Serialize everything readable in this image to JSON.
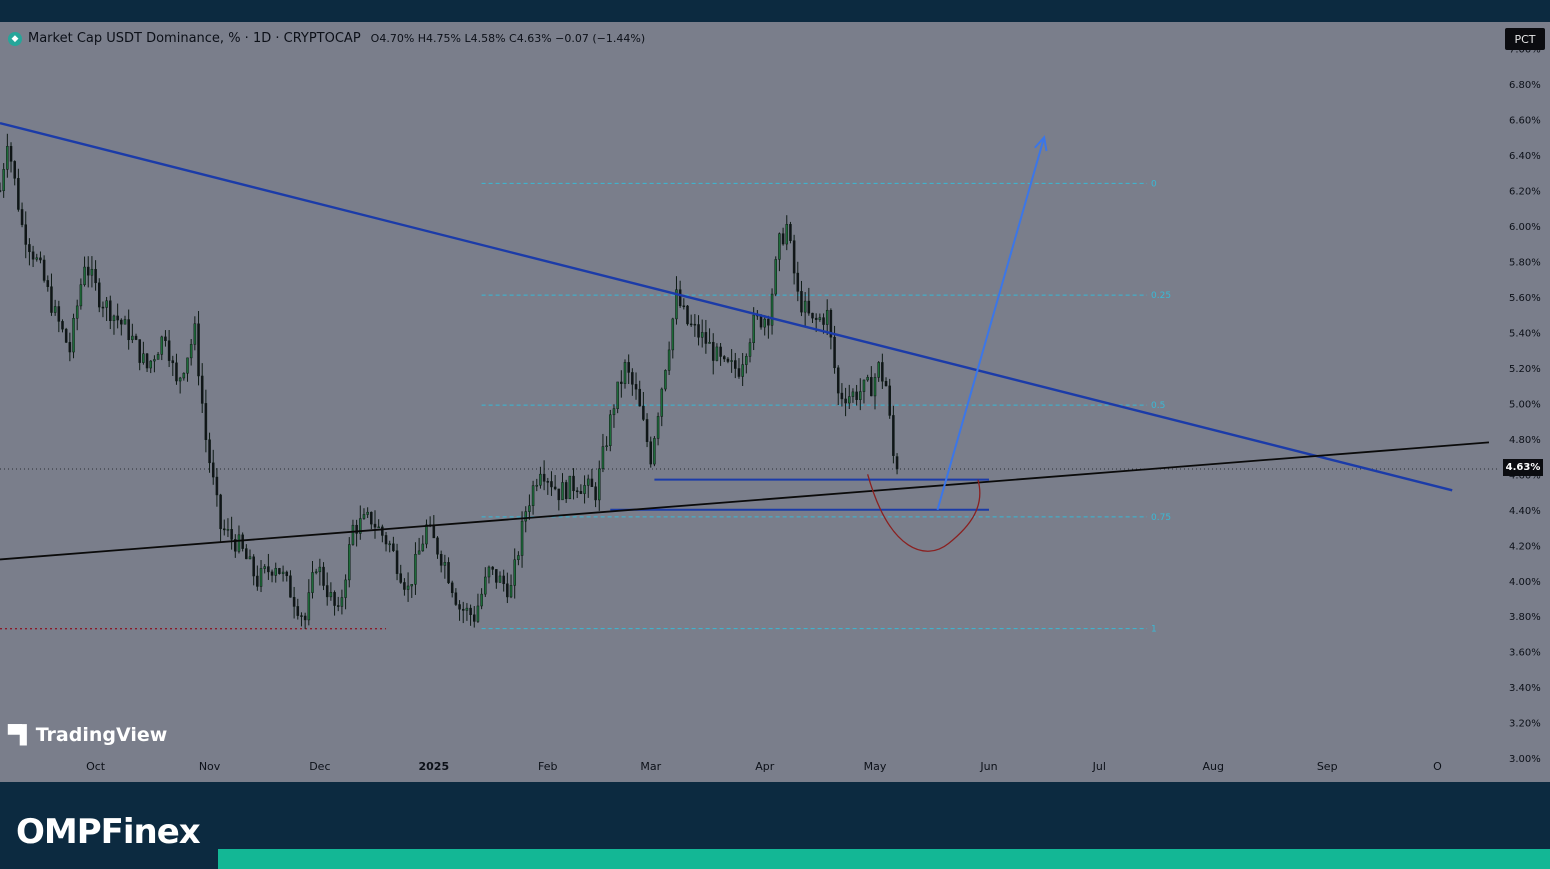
{
  "legend": {
    "title": "Market Cap USDT Dominance, % · 1D · CRYPTOCAP",
    "ohlc": "O4.70% H4.75% L4.58% C4.63% −0.07 (−1.44%)"
  },
  "scale_mode": "PCT",
  "current_price_label": "4.63%",
  "watermark": "TradingView",
  "brand": "OMPFinex",
  "colors": {
    "background": "#7a7e8b",
    "trendline_down": "#1b3ba8",
    "trendline_up": "#0a0a0a",
    "projection_arrow": "#3b76e8",
    "fib_lines": "#38b9d6",
    "cup_curve": "#8a2020",
    "brand_bg": "#0c2a40",
    "brand_accent": "#13b795"
  },
  "chart_data": {
    "type": "candlestick",
    "title": "Market Cap USDT Dominance, %",
    "interval": "1D",
    "source": "CRYPTOCAP",
    "yunit": "%",
    "ylim": [
      2.95,
      7.15
    ],
    "y_ticks": [
      "7.00%",
      "6.80%",
      "6.60%",
      "6.40%",
      "6.20%",
      "6.00%",
      "5.80%",
      "5.60%",
      "5.40%",
      "5.20%",
      "5.00%",
      "4.80%",
      "4.60%",
      "4.40%",
      "4.20%",
      "4.00%",
      "3.80%",
      "3.60%",
      "3.40%",
      "3.20%",
      "3.00%"
    ],
    "x_ticks": [
      "Oct",
      "Nov",
      "Dec",
      "2025",
      "Feb",
      "Mar",
      "Apr",
      "May",
      "Jun",
      "Jul",
      "Aug",
      "Sep",
      "O"
    ],
    "x_tick_days": [
      0,
      31,
      61,
      92,
      123,
      151,
      182,
      212,
      243,
      273,
      304,
      335,
      365
    ],
    "x_range_days": [
      -26,
      382
    ],
    "last": {
      "open": 4.7,
      "high": 4.75,
      "low": 4.58,
      "close": 4.63,
      "change": -0.07,
      "change_pct": -1.44
    },
    "price_path": [
      {
        "day": -26,
        "close": 6.2
      },
      {
        "day": -24,
        "close": 6.5
      },
      {
        "day": -20,
        "close": 6.0
      },
      {
        "day": -15,
        "close": 5.75
      },
      {
        "day": -11,
        "close": 5.5
      },
      {
        "day": -7,
        "close": 5.3
      },
      {
        "day": -3,
        "close": 5.8
      },
      {
        "day": 1,
        "close": 5.6
      },
      {
        "day": 9,
        "close": 5.4
      },
      {
        "day": 14,
        "close": 5.2
      },
      {
        "day": 19,
        "close": 5.4
      },
      {
        "day": 22,
        "close": 5.1
      },
      {
        "day": 27,
        "close": 5.4
      },
      {
        "day": 30,
        "close": 4.8
      },
      {
        "day": 34,
        "close": 4.3
      },
      {
        "day": 39,
        "close": 4.2
      },
      {
        "day": 44,
        "close": 4.0
      },
      {
        "day": 49,
        "close": 4.1
      },
      {
        "day": 54,
        "close": 3.9
      },
      {
        "day": 57,
        "close": 3.78
      },
      {
        "day": 60,
        "close": 4.1
      },
      {
        "day": 66,
        "close": 3.8
      },
      {
        "day": 70,
        "close": 4.3
      },
      {
        "day": 75,
        "close": 4.35
      },
      {
        "day": 80,
        "close": 4.2
      },
      {
        "day": 85,
        "close": 3.95
      },
      {
        "day": 90,
        "close": 4.3
      },
      {
        "day": 95,
        "close": 4.1
      },
      {
        "day": 99,
        "close": 3.85
      },
      {
        "day": 103,
        "close": 3.8
      },
      {
        "day": 107,
        "close": 4.05
      },
      {
        "day": 113,
        "close": 3.95
      },
      {
        "day": 117,
        "close": 4.4
      },
      {
        "day": 121,
        "close": 4.65
      },
      {
        "day": 126,
        "close": 4.5
      },
      {
        "day": 131,
        "close": 4.55
      },
      {
        "day": 136,
        "close": 4.5
      },
      {
        "day": 141,
        "close": 5.0
      },
      {
        "day": 144,
        "close": 5.2
      },
      {
        "day": 147,
        "close": 5.05
      },
      {
        "day": 151,
        "close": 4.7
      },
      {
        "day": 154,
        "close": 5.1
      },
      {
        "day": 158,
        "close": 5.6
      },
      {
        "day": 161,
        "close": 5.45
      },
      {
        "day": 166,
        "close": 5.35
      },
      {
        "day": 171,
        "close": 5.2
      },
      {
        "day": 175,
        "close": 5.2
      },
      {
        "day": 179,
        "close": 5.45
      },
      {
        "day": 183,
        "close": 5.5
      },
      {
        "day": 186,
        "close": 5.9
      },
      {
        "day": 188,
        "close": 6.0
      },
      {
        "day": 191,
        "close": 5.6
      },
      {
        "day": 195,
        "close": 5.45
      },
      {
        "day": 199,
        "close": 5.5
      },
      {
        "day": 202,
        "close": 5.05
      },
      {
        "day": 206,
        "close": 5.05
      },
      {
        "day": 211,
        "close": 5.1
      },
      {
        "day": 213,
        "close": 5.2
      },
      {
        "day": 215,
        "close": 5.1
      },
      {
        "day": 217,
        "close": 4.7
      },
      {
        "day": 218,
        "close": 4.63
      }
    ],
    "trendlines": [
      {
        "name": "descending",
        "from": {
          "day": -26,
          "close": 6.58
        },
        "to": {
          "day": 369,
          "close": 4.51
        }
      },
      {
        "day_label": "ascending",
        "from": {
          "day": -26,
          "close": 4.12
        },
        "to": {
          "day": 379,
          "close": 4.78
        }
      }
    ],
    "horizontal_levels": [
      {
        "price": 4.57,
        "from_day": 152,
        "to_day": 243
      },
      {
        "price": 4.4,
        "from_day": 140,
        "to_day": 243
      }
    ],
    "support_dotted": {
      "price": 3.73,
      "from_day": -26,
      "to_day": 79
    },
    "fib_retracement": {
      "from_day": 105,
      "to_day": 286,
      "levels": [
        {
          "label": "0",
          "price": 6.24
        },
        {
          "label": "0.25",
          "price": 5.61
        },
        {
          "label": "0.5",
          "price": 4.99
        },
        {
          "label": "0.75",
          "price": 4.36
        },
        {
          "label": "1",
          "price": 3.73
        }
      ]
    },
    "projection_arrow": {
      "from": {
        "day": 229,
        "close": 4.4
      },
      "to": {
        "day": 258,
        "close": 6.5
      }
    },
    "cup_curve": {
      "from": {
        "day": 210,
        "close": 4.6
      },
      "bottom": {
        "day": 222,
        "close": 4.16
      },
      "to": {
        "day": 240,
        "close": 4.57
      }
    }
  }
}
